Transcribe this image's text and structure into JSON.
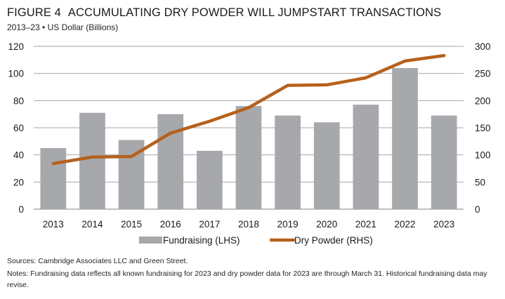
{
  "header": {
    "figure_label": "FIGURE 4",
    "title": "ACCUMULATING DRY POWDER WILL JUMPSTART TRANSACTIONS",
    "subtitle": "2013–23 • US Dollar (Billions)"
  },
  "colors": {
    "bar": "#A7A8AB",
    "line": "#B5611D",
    "grid": "#A6A6A6",
    "axis": "#808080"
  },
  "chart_data": {
    "type": "bar",
    "title": "ACCUMULATING DRY POWDER WILL JUMPSTART TRANSACTIONS",
    "subtitle": "2013–23 • US Dollar (Billions)",
    "xlabel": "",
    "ylabel": "",
    "categories": [
      "2013",
      "2014",
      "2015",
      "2016",
      "2017",
      "2018",
      "2019",
      "2020",
      "2021",
      "2022",
      "2023"
    ],
    "series": [
      {
        "name": "Fundraising (LHS)",
        "type": "bar",
        "axis": "left",
        "values": [
          45,
          71,
          51,
          70,
          43,
          76,
          69,
          64,
          77,
          104,
          69
        ]
      },
      {
        "name": "Dry Powder (RHS)",
        "type": "line",
        "axis": "right",
        "values": [
          84,
          96,
          97,
          140,
          162,
          187,
          228,
          229,
          242,
          273,
          283
        ]
      }
    ],
    "ylim_left": [
      0,
      120
    ],
    "yticks_left": [
      "0",
      "20",
      "40",
      "60",
      "80",
      "100",
      "120"
    ],
    "ylim_right": [
      0,
      300
    ],
    "yticks_right": [
      "0",
      "50",
      "100",
      "150",
      "200",
      "250",
      "300"
    ],
    "grid": true,
    "legend": "bottom-center"
  },
  "footer": {
    "sources": "Sources: Cambridge Associates LLC and Green Street.",
    "notes": "Notes: Fundraising data reflects all known fundraising for 2023 and dry powder data for 2023 are through March 31. Historical fundraising data may revise."
  }
}
